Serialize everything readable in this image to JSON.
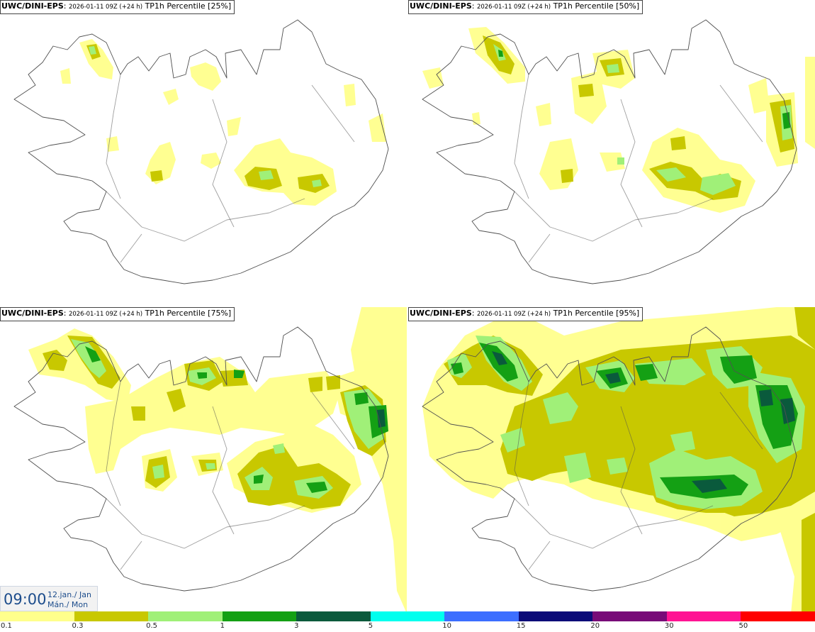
{
  "panels": [
    {
      "source": "UWC/DINI-EPS",
      "datetime": "2026-01-11 09Z (+24 h)",
      "field": "TP1h Percentile [25%]"
    },
    {
      "source": "UWC/DINI-EPS",
      "datetime": "2026-01-11 09Z (+24 h)",
      "field": "TP1h Percentile [50%]"
    },
    {
      "source": "UWC/DINI-EPS",
      "datetime": "2026-01-11 09Z (+24 h)",
      "field": "TP1h Percentile [75%]"
    },
    {
      "source": "UWC/DINI-EPS",
      "datetime": "2026-01-11 09Z (+24 h)",
      "field": "TP1h Percentile [95%]"
    }
  ],
  "valid_time": {
    "time": "09:00",
    "date_line1": "12.jan./ Jan",
    "date_line2": "Mán./ Mon"
  },
  "legend": {
    "labels": [
      "0.1",
      "0.3",
      "0.5",
      "1",
      "3",
      "5",
      "10",
      "15",
      "20",
      "30",
      "50"
    ],
    "colors": [
      "#ffff8c",
      "#c8c800",
      "#a0f078",
      "#14a014",
      "#0a5a3c",
      "#00ffee",
      "#3c6eff",
      "#0a0a78",
      "#780a78",
      "#ff1493",
      "#ff0000"
    ]
  },
  "colors": {
    "coast": "#505050",
    "time_text": "#1d4d8c"
  }
}
